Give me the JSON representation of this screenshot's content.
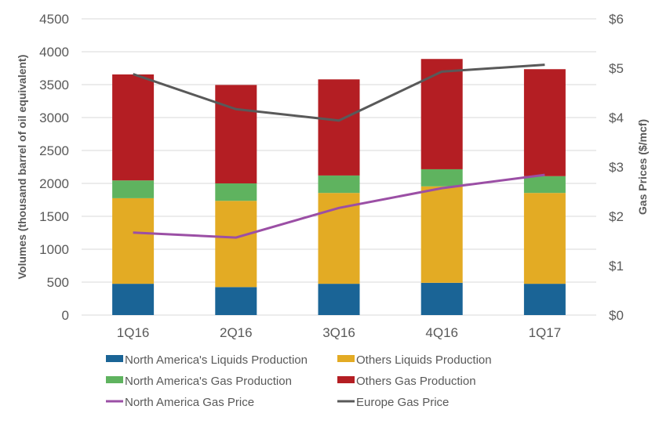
{
  "chart_data": {
    "type": "bar",
    "stacked": true,
    "categories": [
      "1Q16",
      "2Q16",
      "3Q16",
      "4Q16",
      "1Q17"
    ],
    "ylabel": "Volumes (thousand barrel of oil equivalent)",
    "ylim": [
      0,
      4500
    ],
    "yticks": [
      0,
      500,
      1000,
      1500,
      2000,
      2500,
      3000,
      3500,
      4000,
      4500
    ],
    "ytick_labels": [
      "0",
      "500",
      "1000",
      "1500",
      "2000",
      "2500",
      "3000",
      "3500",
      "4000",
      "4500"
    ],
    "y2label": "Gas Prices ($/mcf)",
    "y2lim": [
      0,
      6
    ],
    "y2ticks": [
      0,
      1,
      2,
      3,
      4,
      5,
      6
    ],
    "y2tick_labels": [
      "$0",
      "$1",
      "$2",
      "$3",
      "$4",
      "$5",
      "$6"
    ],
    "grid": true,
    "legend_position": "bottom",
    "series": [
      {
        "name": "North America's Liquids Production",
        "kind": "bar",
        "axis": "left",
        "color": "#1a6496",
        "values": [
          475,
          425,
          475,
          490,
          475
        ]
      },
      {
        "name": "Others Liquids Production",
        "kind": "bar",
        "axis": "left",
        "color": "#e3ab24",
        "values": [
          1300,
          1310,
          1380,
          1465,
          1380
        ]
      },
      {
        "name": "North America's Gas Production",
        "kind": "bar",
        "axis": "left",
        "color": "#5fb35f",
        "values": [
          270,
          265,
          265,
          260,
          255
        ]
      },
      {
        "name": "Others Gas Production",
        "kind": "bar",
        "axis": "left",
        "color": "#b41e23",
        "values": [
          1610,
          1495,
          1460,
          1675,
          1625
        ]
      },
      {
        "name": "North America Gas Price",
        "kind": "line",
        "axis": "right",
        "color": "#9b4fa5",
        "values": [
          1.67,
          1.57,
          2.17,
          2.57,
          2.84
        ]
      },
      {
        "name": "Europe Gas Price",
        "kind": "line",
        "axis": "right",
        "color": "#595959",
        "values": [
          4.88,
          4.17,
          3.94,
          4.93,
          5.07
        ]
      }
    ]
  }
}
